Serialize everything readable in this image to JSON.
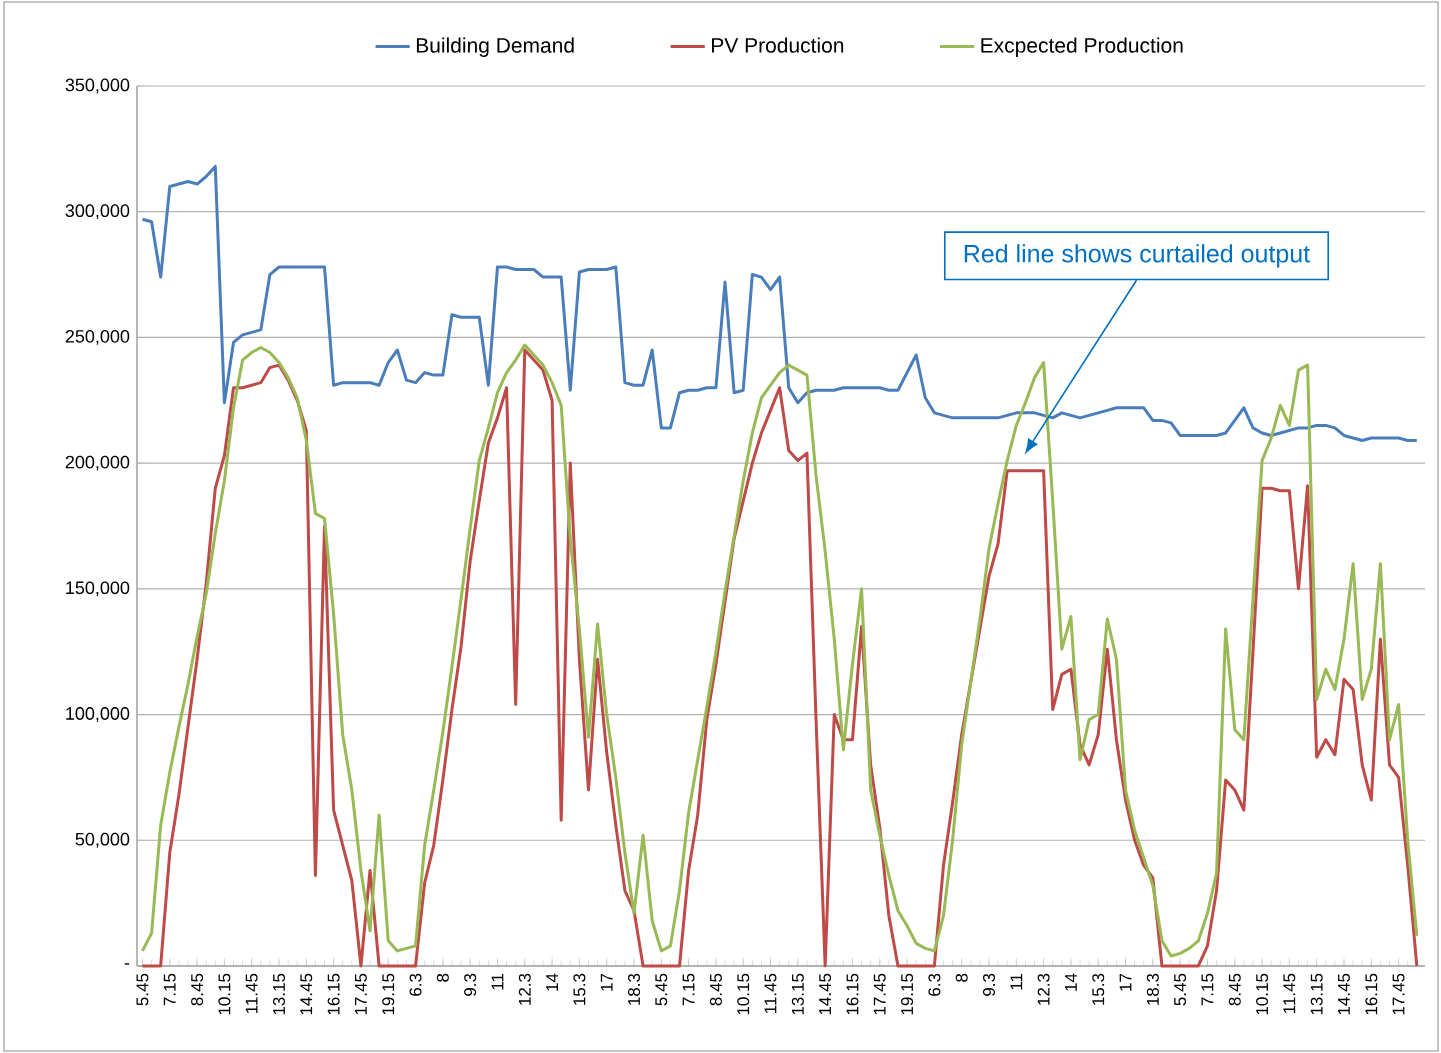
{
  "chart_data": {
    "type": "line",
    "legend": "top",
    "grid": "y",
    "ylim": [
      0,
      350000
    ],
    "yticks": [
      {
        "value": 0,
        "label": "-"
      },
      {
        "value": 50000,
        "label": "50,000"
      },
      {
        "value": 100000,
        "label": "100,000"
      },
      {
        "value": 150000,
        "label": "150,000"
      },
      {
        "value": 200000,
        "label": "200,000"
      },
      {
        "value": 250000,
        "label": "250,000"
      },
      {
        "value": 300000,
        "label": "300,000"
      },
      {
        "value": 350000,
        "label": "350,000"
      }
    ],
    "categories": [
      "5.45",
      null,
      null,
      "7.15",
      null,
      null,
      "8.45",
      null,
      null,
      "10.15",
      null,
      null,
      "11.45",
      null,
      null,
      "13.15",
      null,
      null,
      "14.45",
      null,
      null,
      "16.15",
      null,
      null,
      "17.45",
      null,
      null,
      "19.15",
      null,
      null,
      "6.3",
      null,
      null,
      "8",
      null,
      null,
      "9.3",
      null,
      null,
      "11",
      null,
      null,
      "12.3",
      null,
      null,
      "14",
      null,
      null,
      "15.3",
      null,
      null,
      "17",
      null,
      null,
      "18.3",
      null,
      null,
      "5.45",
      null,
      null,
      "7.15",
      null,
      null,
      "8.45",
      null,
      null,
      "10.15",
      null,
      null,
      "11.45",
      null,
      null,
      "13.15",
      null,
      null,
      "14.45",
      null,
      null,
      "16.15",
      null,
      null,
      "17.45",
      null,
      null,
      "19.15",
      null,
      null,
      "6.3",
      null,
      null,
      "8",
      null,
      null,
      "9.3",
      null,
      null,
      "11",
      null,
      null,
      "12.3",
      null,
      null,
      "14",
      null,
      null,
      "15.3",
      null,
      null,
      "17",
      null,
      null,
      "18.3",
      null,
      null,
      "5.45",
      null,
      null,
      "7.15",
      null,
      null,
      "8.45",
      null,
      null,
      "10.15",
      null,
      null,
      "11.45",
      null,
      null,
      "13.15",
      null,
      null,
      "14.45",
      null,
      null,
      "16.15",
      null,
      null,
      "17.45",
      null,
      null
    ],
    "annotations": [
      "Red line shows curtailed output"
    ],
    "series": [
      {
        "name": "Building Demand",
        "color": "#4a7ebb",
        "values": [
          297000,
          296000,
          274000,
          310000,
          311000,
          312000,
          311000,
          314000,
          318000,
          224000,
          248000,
          251000,
          252000,
          253000,
          275000,
          278000,
          278000,
          278000,
          278000,
          278000,
          278000,
          231000,
          232000,
          232000,
          232000,
          232000,
          231000,
          240000,
          245000,
          233000,
          232000,
          236000,
          235000,
          235000,
          259000,
          258000,
          258000,
          258000,
          231000,
          278000,
          278000,
          277000,
          277000,
          277000,
          274000,
          274000,
          274000,
          229000,
          276000,
          277000,
          277000,
          277000,
          278000,
          232000,
          231000,
          231000,
          245000,
          214000,
          214000,
          228000,
          229000,
          229000,
          230000,
          230000,
          272000,
          228000,
          229000,
          275000,
          274000,
          269000,
          274000,
          230000,
          224000,
          228000,
          229000,
          229000,
          229000,
          230000,
          230000,
          230000,
          230000,
          230000,
          229000,
          229000,
          236000,
          243000,
          226000,
          220000,
          219000,
          218000,
          218000,
          218000,
          218000,
          218000,
          218000,
          219000,
          220000,
          220000,
          220000,
          219000,
          218000,
          220000,
          219000,
          218000,
          219000,
          220000,
          221000,
          222000,
          222000,
          222000,
          222000,
          217000,
          217000,
          216000,
          211000,
          211000,
          211000,
          211000,
          211000,
          212000,
          217000,
          222000,
          214000,
          212000,
          211000,
          212000,
          213000,
          214000,
          214000,
          215000,
          215000,
          214000,
          211000,
          210000,
          209000,
          210000,
          210000,
          210000,
          210000,
          209000,
          209000
        ]
      },
      {
        "name": "PV Production",
        "color": "#be4b48",
        "values": [
          0,
          0,
          0,
          45000,
          68000,
          95000,
          122000,
          152000,
          190000,
          203000,
          230000,
          230000,
          231000,
          232000,
          238000,
          239000,
          233000,
          225000,
          213000,
          36000,
          175000,
          62000,
          48000,
          34000,
          0,
          38000,
          0,
          0,
          0,
          0,
          0,
          33000,
          48000,
          74000,
          102000,
          127000,
          161000,
          185000,
          208000,
          218000,
          230000,
          104000,
          245000,
          241000,
          237000,
          225000,
          58000,
          200000,
          122000,
          70000,
          122000,
          85000,
          56000,
          30000,
          22000,
          0,
          0,
          0,
          0,
          0,
          38000,
          60000,
          98000,
          120000,
          145000,
          170000,
          185000,
          200000,
          212000,
          221000,
          230000,
          205000,
          201000,
          204000,
          98000,
          0,
          100000,
          90000,
          90000,
          135000,
          80000,
          55000,
          20000,
          0,
          0,
          0,
          0,
          0,
          40000,
          65000,
          92000,
          113000,
          134000,
          155000,
          168000,
          197000,
          197000,
          197000,
          197000,
          197000,
          102000,
          116000,
          118000,
          88000,
          80000,
          92000,
          126000,
          90000,
          66000,
          50000,
          40000,
          35000,
          0,
          0,
          0,
          0,
          0,
          8000,
          30000,
          74000,
          70000,
          62000,
          125000,
          190000,
          190000,
          189000,
          189000,
          150000,
          191000,
          83000,
          90000,
          84000,
          114000,
          110000,
          80000,
          66000,
          130000,
          80000,
          75000,
          40000,
          0
        ]
      },
      {
        "name": "Excpected Production",
        "color": "#98b954",
        "values": [
          6000,
          13000,
          56000,
          77000,
          95000,
          112000,
          131000,
          148000,
          172000,
          193000,
          222000,
          241000,
          244000,
          246000,
          244000,
          240000,
          234000,
          226000,
          209000,
          180000,
          178000,
          140000,
          92000,
          70000,
          38000,
          14000,
          60000,
          10000,
          6000,
          7000,
          8000,
          48000,
          70000,
          93000,
          119000,
          146000,
          174000,
          201000,
          214000,
          228000,
          236000,
          241000,
          247000,
          243000,
          239000,
          232000,
          223000,
          170000,
          134000,
          91000,
          136000,
          100000,
          75000,
          45000,
          21000,
          52000,
          18000,
          6000,
          8000,
          30000,
          61000,
          82000,
          103000,
          125000,
          149000,
          171000,
          193000,
          212000,
          226000,
          231000,
          236000,
          239000,
          237000,
          235000,
          195000,
          165000,
          130000,
          86000,
          120000,
          150000,
          70000,
          52000,
          36000,
          22000,
          16000,
          9000,
          7000,
          6000,
          20000,
          50000,
          88000,
          113000,
          138000,
          166000,
          184000,
          201000,
          215000,
          224000,
          234000,
          240000,
          185000,
          126000,
          139000,
          82000,
          98000,
          100000,
          138000,
          122000,
          70000,
          54000,
          43000,
          32000,
          10000,
          4000,
          5000,
          7000,
          10000,
          21000,
          37000,
          134000,
          94000,
          90000,
          146000,
          201000,
          210000,
          223000,
          215000,
          237000,
          239000,
          106000,
          118000,
          110000,
          130000,
          160000,
          106000,
          118000,
          160000,
          90000,
          104000,
          50000,
          12000
        ]
      }
    ]
  }
}
